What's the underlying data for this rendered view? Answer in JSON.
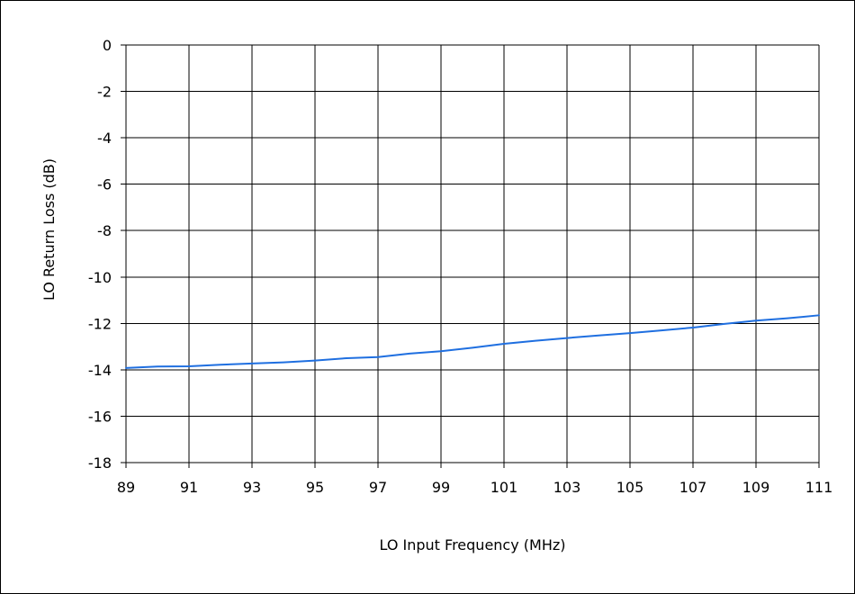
{
  "chart_data": {
    "type": "line",
    "title": "",
    "xlabel": "LO Input Frequency (MHz)",
    "ylabel": "LO Return Loss (dB)",
    "xlim": [
      89,
      111
    ],
    "ylim": [
      -18,
      0
    ],
    "xticks": [
      89,
      91,
      93,
      95,
      97,
      99,
      101,
      103,
      105,
      107,
      109,
      111
    ],
    "yticks": [
      0,
      -2,
      -4,
      -6,
      -8,
      -10,
      -12,
      -14,
      -16,
      -18
    ],
    "grid": true,
    "legend": "none",
    "series": [
      {
        "color": "#1f6fe0",
        "x": [
          89,
          90,
          91,
          92,
          93,
          94,
          95,
          96,
          97,
          98,
          99,
          100,
          101,
          102,
          103,
          104,
          105,
          106,
          107,
          108,
          109,
          110,
          111
        ],
        "y": [
          -13.92,
          -13.86,
          -13.85,
          -13.78,
          -13.73,
          -13.68,
          -13.6,
          -13.5,
          -13.45,
          -13.3,
          -13.2,
          -13.05,
          -12.88,
          -12.75,
          -12.63,
          -12.52,
          -12.42,
          -12.3,
          -12.18,
          -12.02,
          -11.88,
          -11.78,
          -11.65
        ]
      }
    ]
  }
}
